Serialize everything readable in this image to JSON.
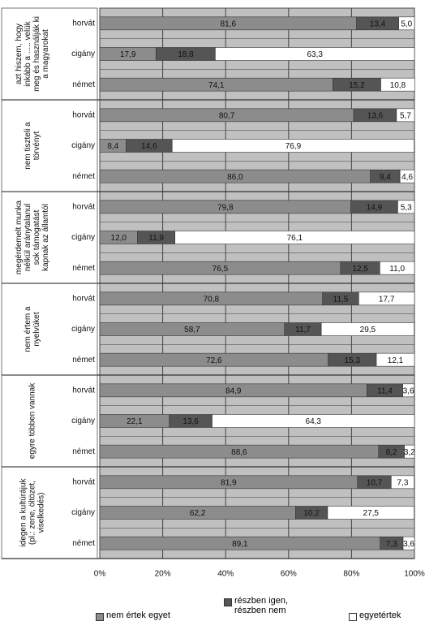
{
  "chart_data": {
    "type": "stacked-barh",
    "groups": [
      [
        "azt hiszem, hogy",
        "inkább a ..... velük",
        "meg és használják ki",
        "a magyarokat"
      ],
      [
        "nem tiszteli a",
        "törvényt"
      ],
      [
        "megérdemelt munka",
        "nélkül aránytalanul",
        "sok támogatást",
        "kapnak az államtól"
      ],
      [
        "nem értem a",
        "nyelvüket"
      ],
      [
        "egyre többen vannak"
      ],
      [
        "idegen a kultúrájuk",
        "(pl.: zene, öltözet,",
        "viselkedés)"
      ]
    ],
    "categories": [
      "horvát",
      "cigány",
      "német",
      "horvát",
      "cigány",
      "német",
      "horvát",
      "cigány",
      "német",
      "horvát",
      "cigány",
      "német",
      "horvát",
      "cigány",
      "német",
      "horvát",
      "cigány",
      "német"
    ],
    "series": [
      {
        "name": "nem értek egyet",
        "color": "#8c8c8c",
        "values": [
          81.6,
          17.9,
          74.1,
          80.7,
          8.4,
          86.0,
          79.8,
          12.0,
          76.5,
          70.8,
          58.7,
          72.6,
          84.9,
          22.1,
          88.6,
          81.9,
          62.2,
          89.1
        ],
        "value_labels": [
          "81,6",
          "17,9",
          "74,1",
          "80,7",
          "8,4",
          "86,0",
          "79,8",
          "12,0",
          "76,5",
          "70,8",
          "58,7",
          "72,6",
          "84,9",
          "22,1",
          "88,6",
          "81,9",
          "62,2",
          "89,1"
        ]
      },
      {
        "name": "részben igen, részben nem",
        "color": "#555555",
        "values": [
          13.4,
          18.8,
          15.2,
          13.6,
          14.6,
          9.4,
          14.9,
          11.9,
          12.5,
          11.5,
          11.7,
          15.3,
          11.4,
          13.6,
          8.2,
          10.7,
          10.2,
          7.3
        ],
        "value_labels": [
          "13,4",
          "18,8",
          "15,2",
          "13,6",
          "14,6",
          "9,4",
          "14,9",
          "11,9",
          "12,5",
          "11,5",
          "11,7",
          "15,3",
          "11,4",
          "13,6",
          "8,2",
          "10,7",
          "10,2",
          "7,3"
        ]
      },
      {
        "name": "egyetértek",
        "color": "#ffffff",
        "values": [
          5.0,
          63.3,
          10.8,
          5.7,
          76.9,
          4.6,
          5.3,
          76.1,
          11.0,
          17.7,
          29.5,
          12.1,
          3.6,
          64.3,
          3.2,
          7.3,
          27.5,
          3.6
        ],
        "value_labels": [
          "5,0",
          "63,3",
          "10,8",
          "5,7",
          "76,9",
          "4,6",
          "5,3",
          "76,1",
          "11,0",
          "17,7",
          "29,5",
          "12,1",
          "3,6",
          "64,3",
          "3,2",
          "7,3",
          "27,5",
          "3,6"
        ]
      }
    ],
    "xlim": [
      0,
      100
    ],
    "xticks": [
      {
        "value": 0,
        "label": "0%"
      },
      {
        "value": 20,
        "label": "20%"
      },
      {
        "value": 40,
        "label": "40%"
      },
      {
        "value": 60,
        "label": "60%"
      },
      {
        "value": 80,
        "label": "80%"
      },
      {
        "value": 100,
        "label": "100%"
      }
    ],
    "grid": true
  }
}
